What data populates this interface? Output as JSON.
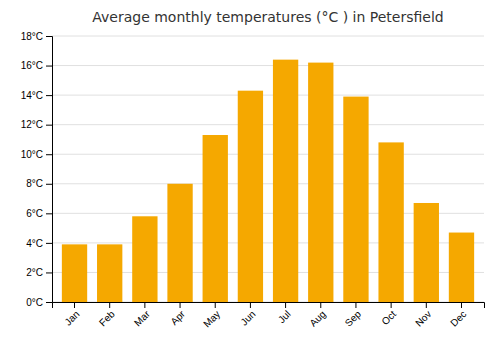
{
  "chart_data": {
    "type": "bar",
    "title": "Average monthly temperatures (°C ) in Petersfield",
    "categories": [
      "Jan",
      "Feb",
      "Mar",
      "Apr",
      "May",
      "Jun",
      "Jul",
      "Aug",
      "Sep",
      "Oct",
      "Nov",
      "Dec"
    ],
    "values": [
      3.9,
      3.9,
      5.8,
      8.0,
      11.3,
      14.3,
      16.4,
      16.2,
      13.9,
      10.8,
      6.7,
      4.7
    ],
    "color": "#F5A800",
    "ylim": [
      0,
      18
    ],
    "yticks": [
      {
        "value": 0,
        "label": "0°C"
      },
      {
        "value": 2,
        "label": "2°C"
      },
      {
        "value": 4,
        "label": "4°C"
      },
      {
        "value": 6,
        "label": "6°C"
      },
      {
        "value": 8,
        "label": "8°C"
      },
      {
        "value": 10,
        "label": "10°C"
      },
      {
        "value": 12,
        "label": "12°C"
      },
      {
        "value": 14,
        "label": "14°C"
      },
      {
        "value": 16,
        "label": "16°C"
      },
      {
        "value": 18,
        "label": "18°C"
      }
    ],
    "grid": true
  }
}
